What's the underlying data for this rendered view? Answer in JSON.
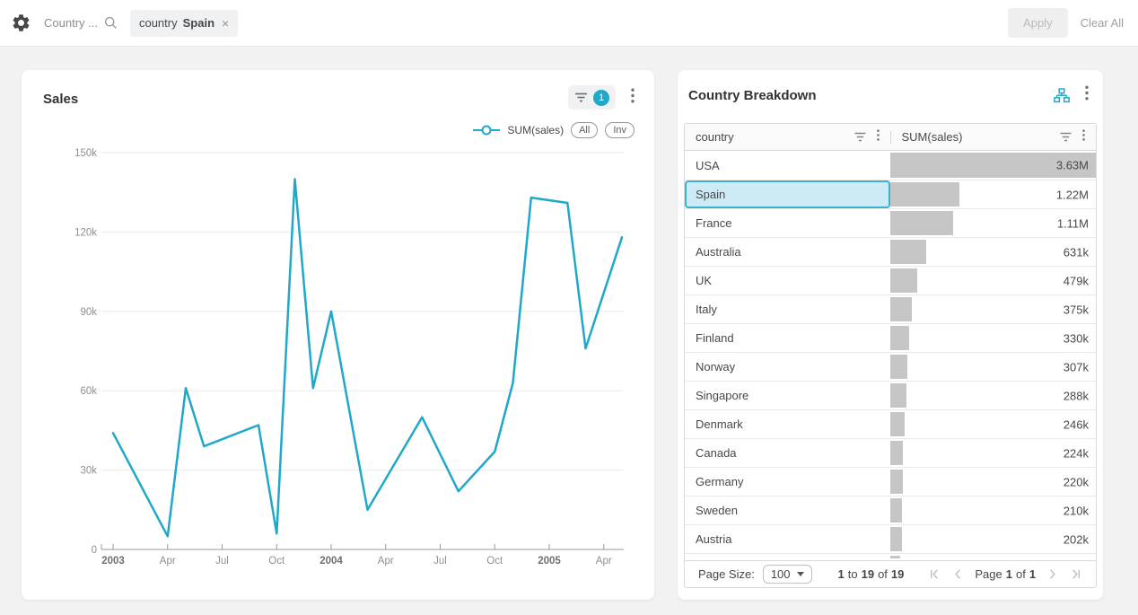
{
  "topbar": {
    "filter_name": "Country ...",
    "chip": {
      "dimension": "country",
      "value": "Spain",
      "remove_symbol": "×"
    },
    "apply_label": "Apply",
    "clear_all_label": "Clear All"
  },
  "colors": {
    "accent": "#1FA8C9",
    "bar_fill": "#c6c6c6",
    "selected_row_bg": "#cdebf5",
    "selected_row_border": "#3cb1d2"
  },
  "sales_panel": {
    "title": "Sales",
    "filter_badge_count": "1",
    "legend": {
      "series_label": "SUM(sales)",
      "all_label": "All",
      "inv_label": "Inv"
    },
    "chart_data": {
      "type": "line",
      "title": "Sales",
      "xlabel": "",
      "ylabel": "",
      "ylim": [
        0,
        150000
      ],
      "grid": true,
      "legend_position": "top-right",
      "line_color": "#1FA8C9",
      "x_tick_labels": [
        "2003",
        "Apr",
        "Jul",
        "Oct",
        "2004",
        "Apr",
        "Jul",
        "Oct",
        "2005",
        "Apr"
      ],
      "x_tick_months": [
        0,
        3,
        6,
        9,
        12,
        15,
        18,
        21,
        24,
        27
      ],
      "y_tick_labels": [
        "0",
        "30k",
        "60k",
        "90k",
        "120k",
        "150k"
      ],
      "y_tick_values": [
        0,
        30000,
        60000,
        90000,
        120000,
        150000
      ],
      "months_span": 29,
      "series": [
        {
          "name": "SUM(sales)",
          "points": [
            {
              "month": "2003-01",
              "m": 0,
              "value": 44000
            },
            {
              "month": "2003-04",
              "m": 3,
              "value": 5000
            },
            {
              "month": "2003-05",
              "m": 4,
              "value": 61000
            },
            {
              "month": "2003-06",
              "m": 5,
              "value": 39000
            },
            {
              "month": "2003-09",
              "m": 8,
              "value": 47000
            },
            {
              "month": "2003-10",
              "m": 9,
              "value": 6000
            },
            {
              "month": "2003-11",
              "m": 10,
              "value": 140000
            },
            {
              "month": "2003-12",
              "m": 11,
              "value": 61000
            },
            {
              "month": "2004-01",
              "m": 12,
              "value": 90000
            },
            {
              "month": "2004-03",
              "m": 14,
              "value": 15000
            },
            {
              "month": "2004-06",
              "m": 17,
              "value": 50000
            },
            {
              "month": "2004-08",
              "m": 19,
              "value": 22000
            },
            {
              "month": "2004-10",
              "m": 21,
              "value": 37000
            },
            {
              "month": "2004-11",
              "m": 22,
              "value": 63000
            },
            {
              "month": "2004-12",
              "m": 23,
              "value": 133000
            },
            {
              "month": "2005-02",
              "m": 25,
              "value": 131000
            },
            {
              "month": "2005-03",
              "m": 26,
              "value": 76000
            },
            {
              "month": "2005-05",
              "m": 28,
              "value": 118000
            }
          ]
        }
      ]
    }
  },
  "breakdown_panel": {
    "title": "Country Breakdown",
    "table": {
      "columns": [
        "country",
        "SUM(sales)"
      ],
      "selected_country": "Spain",
      "rows": [
        {
          "country": "USA",
          "value": "3.63M",
          "bar_pct": 100
        },
        {
          "country": "Spain",
          "value": "1.22M",
          "bar_pct": 33.6
        },
        {
          "country": "France",
          "value": "1.11M",
          "bar_pct": 30.6
        },
        {
          "country": "Australia",
          "value": "631k",
          "bar_pct": 17.4
        },
        {
          "country": "UK",
          "value": "479k",
          "bar_pct": 13.2
        },
        {
          "country": "Italy",
          "value": "375k",
          "bar_pct": 10.3
        },
        {
          "country": "Finland",
          "value": "330k",
          "bar_pct": 9.1
        },
        {
          "country": "Norway",
          "value": "307k",
          "bar_pct": 8.5
        },
        {
          "country": "Singapore",
          "value": "288k",
          "bar_pct": 7.9
        },
        {
          "country": "Denmark",
          "value": "246k",
          "bar_pct": 6.8
        },
        {
          "country": "Canada",
          "value": "224k",
          "bar_pct": 6.2
        },
        {
          "country": "Germany",
          "value": "220k",
          "bar_pct": 6.1
        },
        {
          "country": "Sweden",
          "value": "210k",
          "bar_pct": 5.8
        },
        {
          "country": "Austria",
          "value": "202k",
          "bar_pct": 5.6
        }
      ],
      "partial_row_bar_pct": 4.8
    },
    "pagination": {
      "page_size_label": "Page Size:",
      "page_size": "100",
      "range": {
        "from": "1",
        "to_word": "to",
        "to": "19",
        "of_word": "of",
        "total": "19"
      },
      "page": {
        "word": "Page",
        "number": "1",
        "of_word": "of",
        "total": "1"
      }
    }
  }
}
